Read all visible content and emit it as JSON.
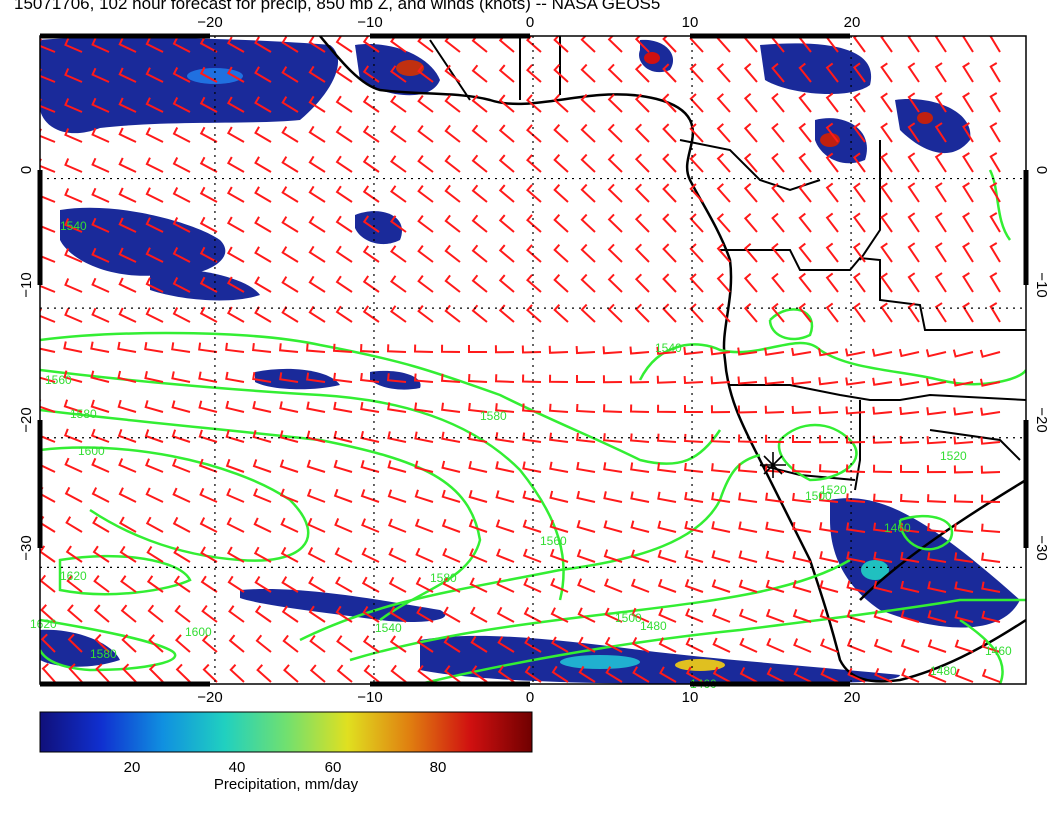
{
  "title": "15071706, 102 hour forecast for precip, 850 mb Z, and winds (knots) -- NASA GEOS5",
  "map": {
    "lon_range": [
      -31,
      31
    ],
    "lat_range": [
      -39,
      11
    ],
    "lon_ticks": [
      -20,
      -10,
      0,
      10,
      20
    ],
    "lat_ticks": [
      0,
      -10,
      -20,
      -30
    ],
    "lon_tick_labels": [
      "−20",
      "−10",
      "0",
      "10",
      "20"
    ],
    "lat_tick_labels": [
      "0",
      "−10",
      "−20",
      "−30"
    ],
    "grid": "dotted",
    "wind_barb_color": "#ff1a1a",
    "contour_color": "#33ee33",
    "coastline_color": "#000000",
    "marker": "station-star"
  },
  "contour_labels": [
    "1540",
    "1560",
    "1580",
    "1600",
    "1620",
    "1580",
    "1560",
    "1540",
    "1500",
    "1480",
    "1460",
    "1580",
    "1620",
    "1600",
    "1580",
    "1540",
    "1520",
    "1500",
    "1460",
    "1480",
    "1460",
    "1520"
  ],
  "colorbar": {
    "label": "Precipitation, mm/day",
    "ticks": [
      "20",
      "40",
      "60",
      "80"
    ],
    "colors": [
      "#10107a",
      "#1030d0",
      "#1090e0",
      "#20d0c0",
      "#70e070",
      "#e0e020",
      "#e08010",
      "#d01010",
      "#700000"
    ]
  }
}
